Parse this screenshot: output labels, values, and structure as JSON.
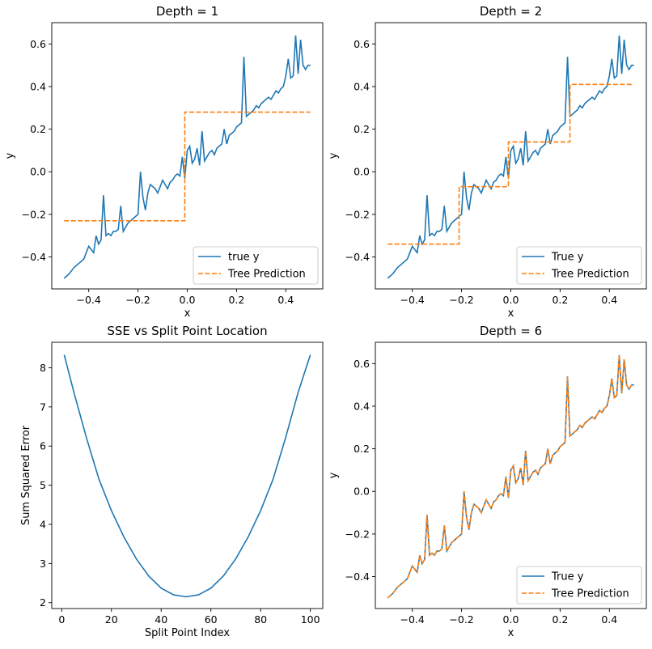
{
  "colors": {
    "true_series": "#1f77b4",
    "pred_series": "#ff7f0e"
  },
  "chart_data": [
    {
      "type": "line",
      "title": "Depth = 1",
      "xlabel": "x",
      "ylabel": "y",
      "xlim": [
        -0.55,
        0.55
      ],
      "ylim": [
        -0.55,
        0.7
      ],
      "xticks": [
        -0.4,
        -0.2,
        0.0,
        0.2,
        0.4
      ],
      "xtick_labels": [
        "−0.4",
        "−0.2",
        "0.0",
        "0.2",
        "0.4"
      ],
      "yticks": [
        -0.4,
        -0.2,
        0.0,
        0.2,
        0.4,
        0.6
      ],
      "ytick_labels": [
        "−0.4",
        "−0.2",
        "0.0",
        "0.2",
        "0.4",
        "0.6"
      ],
      "legend_loc": "lower-right",
      "series": [
        {
          "name": "true y",
          "kind": "true",
          "style": "solid",
          "x": [
            -0.5,
            -0.48,
            -0.46,
            -0.44,
            -0.42,
            -0.4,
            -0.38,
            -0.37,
            -0.36,
            -0.35,
            -0.34,
            -0.33,
            -0.32,
            -0.31,
            -0.3,
            -0.29,
            -0.28,
            -0.27,
            -0.26,
            -0.25,
            -0.24,
            -0.22,
            -0.2,
            -0.19,
            -0.18,
            -0.17,
            -0.16,
            -0.15,
            -0.14,
            -0.13,
            -0.12,
            -0.11,
            -0.1,
            -0.09,
            -0.08,
            -0.07,
            -0.06,
            -0.05,
            -0.04,
            -0.03,
            -0.02,
            -0.01,
            0.0,
            0.01,
            0.02,
            0.03,
            0.04,
            0.05,
            0.06,
            0.07,
            0.08,
            0.09,
            0.1,
            0.11,
            0.12,
            0.13,
            0.14,
            0.15,
            0.16,
            0.17,
            0.18,
            0.19,
            0.2,
            0.21,
            0.22,
            0.23,
            0.24,
            0.25,
            0.26,
            0.27,
            0.28,
            0.29,
            0.3,
            0.31,
            0.32,
            0.33,
            0.34,
            0.35,
            0.36,
            0.37,
            0.38,
            0.39,
            0.4,
            0.41,
            0.42,
            0.43,
            0.44,
            0.45,
            0.46,
            0.47,
            0.48,
            0.49,
            0.5
          ],
          "y": [
            -0.5,
            -0.48,
            -0.45,
            -0.43,
            -0.41,
            -0.35,
            -0.38,
            -0.3,
            -0.34,
            -0.32,
            -0.11,
            -0.3,
            -0.29,
            -0.3,
            -0.28,
            -0.28,
            -0.27,
            -0.16,
            -0.28,
            -0.26,
            -0.24,
            -0.22,
            -0.2,
            0.0,
            -0.12,
            -0.18,
            -0.1,
            -0.06,
            -0.07,
            -0.08,
            -0.1,
            -0.07,
            -0.04,
            -0.06,
            -0.08,
            -0.05,
            -0.04,
            -0.02,
            -0.01,
            -0.02,
            0.07,
            -0.03,
            0.1,
            0.12,
            0.04,
            0.06,
            0.11,
            0.03,
            0.19,
            0.05,
            0.07,
            0.09,
            0.1,
            0.08,
            0.11,
            0.12,
            0.13,
            0.2,
            0.13,
            0.17,
            0.18,
            0.19,
            0.21,
            0.22,
            0.23,
            0.54,
            0.26,
            0.27,
            0.28,
            0.29,
            0.31,
            0.3,
            0.32,
            0.33,
            0.34,
            0.35,
            0.34,
            0.36,
            0.38,
            0.37,
            0.39,
            0.4,
            0.45,
            0.53,
            0.44,
            0.45,
            0.64,
            0.46,
            0.62,
            0.5,
            0.48,
            0.5,
            0.5
          ]
        },
        {
          "name": "Tree Prediction",
          "kind": "pred",
          "style": "dashed",
          "x": [
            -0.5,
            -0.01,
            -0.01,
            0.5
          ],
          "y": [
            -0.23,
            -0.23,
            0.28,
            0.28
          ]
        }
      ]
    },
    {
      "type": "line",
      "title": "Depth = 2",
      "xlabel": "x",
      "ylabel": "y",
      "xlim": [
        -0.55,
        0.55
      ],
      "ylim": [
        -0.55,
        0.7
      ],
      "xticks": [
        -0.4,
        -0.2,
        0.0,
        0.2,
        0.4
      ],
      "xtick_labels": [
        "−0.4",
        "−0.2",
        "0.0",
        "0.2",
        "0.4"
      ],
      "yticks": [
        -0.4,
        -0.2,
        0.0,
        0.2,
        0.4,
        0.6
      ],
      "ytick_labels": [
        "−0.4",
        "−0.2",
        "0.0",
        "0.2",
        "0.4",
        "0.6"
      ],
      "legend_loc": "lower-right",
      "series": [
        {
          "name": "True y",
          "kind": "true",
          "style": "solid",
          "shared_true": true
        },
        {
          "name": "Tree Prediction",
          "kind": "pred",
          "style": "dashed",
          "x": [
            -0.5,
            -0.21,
            -0.21,
            -0.01,
            -0.01,
            0.24,
            0.24,
            0.5
          ],
          "y": [
            -0.34,
            -0.34,
            -0.07,
            -0.07,
            0.14,
            0.14,
            0.41,
            0.41
          ]
        }
      ]
    },
    {
      "type": "line",
      "title": "SSE vs Split Point Location",
      "xlabel": "Split Point Index",
      "ylabel": "Sum Squared Error",
      "xlim": [
        -4,
        105
      ],
      "ylim": [
        1.85,
        8.65
      ],
      "xticks": [
        0,
        20,
        40,
        60,
        80,
        100
      ],
      "xtick_labels": [
        "0",
        "20",
        "40",
        "60",
        "80",
        "100"
      ],
      "yticks": [
        2,
        3,
        4,
        5,
        6,
        7,
        8
      ],
      "ytick_labels": [
        "2",
        "3",
        "4",
        "5",
        "6",
        "7",
        "8"
      ],
      "series": [
        {
          "name": "SSE",
          "kind": "true",
          "style": "solid",
          "x": [
            1,
            5,
            10,
            15,
            20,
            25,
            30,
            35,
            40,
            45,
            50,
            55,
            60,
            65,
            70,
            75,
            80,
            85,
            90,
            95,
            100
          ],
          "y": [
            8.33,
            7.35,
            6.2,
            5.15,
            4.35,
            3.68,
            3.12,
            2.68,
            2.37,
            2.2,
            2.15,
            2.2,
            2.37,
            2.68,
            3.12,
            3.68,
            4.35,
            5.15,
            6.2,
            7.35,
            8.33
          ]
        }
      ]
    },
    {
      "type": "line",
      "title": "Depth = 6",
      "xlabel": "x",
      "ylabel": "y",
      "xlim": [
        -0.55,
        0.55
      ],
      "ylim": [
        -0.55,
        0.7
      ],
      "xticks": [
        -0.4,
        -0.2,
        0.0,
        0.2,
        0.4
      ],
      "xtick_labels": [
        "−0.4",
        "−0.2",
        "0.0",
        "0.2",
        "0.4"
      ],
      "yticks": [
        -0.4,
        -0.2,
        0.0,
        0.2,
        0.4,
        0.6
      ],
      "ytick_labels": [
        "−0.4",
        "−0.2",
        "0.0",
        "0.2",
        "0.4",
        "0.6"
      ],
      "legend_loc": "lower-right",
      "series": [
        {
          "name": "True y",
          "kind": "true",
          "style": "solid",
          "shared_true": true
        },
        {
          "name": "Tree Prediction",
          "kind": "pred",
          "style": "dashed",
          "follows_true": true
        }
      ]
    }
  ]
}
